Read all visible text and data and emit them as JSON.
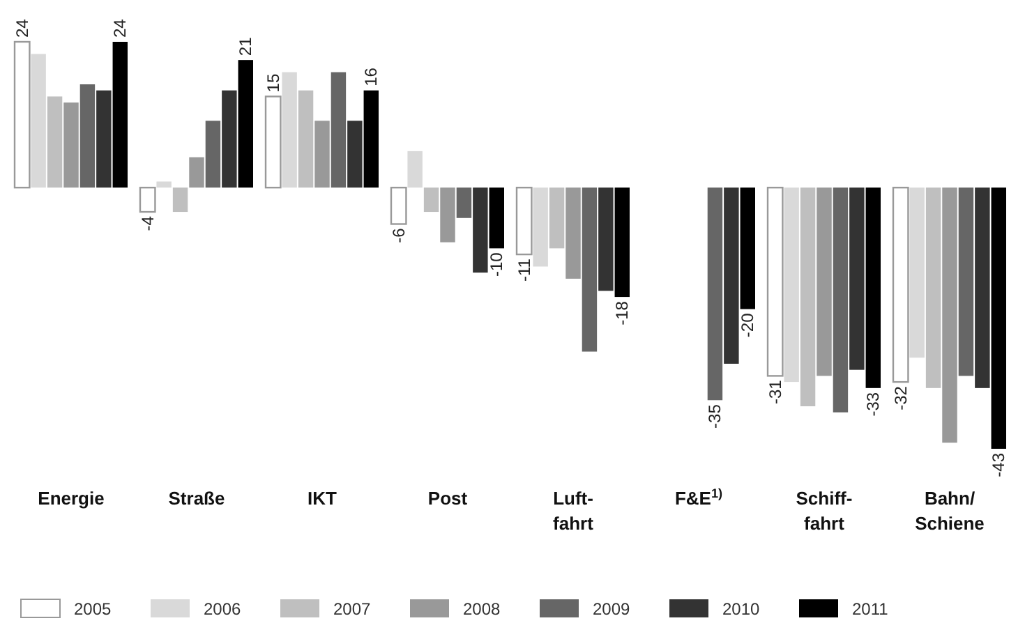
{
  "chart_data": {
    "type": "bar",
    "categories": [
      "Energie",
      "Straße",
      "IKT",
      "Post",
      "Luft-\nfahrt",
      "F&E$^{1)}$",
      "Schiff-\nfahrt",
      "Bahn/\nSchiene"
    ],
    "series": [
      {
        "name": "2005",
        "color": "#ffffff",
        "values": [
          24,
          -4,
          15,
          -6,
          -11,
          null,
          -31,
          -32
        ],
        "value_labels": [
          "24",
          "-4",
          "15",
          "-6",
          "-11",
          null,
          "-31",
          "-32"
        ]
      },
      {
        "name": "2006",
        "color": "#d9d9d9",
        "values": [
          22,
          1,
          19,
          6,
          -13,
          null,
          -32,
          -28
        ],
        "value_labels": [
          null,
          null,
          null,
          null,
          null,
          null,
          null,
          null
        ]
      },
      {
        "name": "2007",
        "color": "#bfbfbf",
        "values": [
          15,
          -4,
          16,
          -4,
          -10,
          null,
          -36,
          -33
        ],
        "value_labels": [
          null,
          null,
          null,
          null,
          null,
          null,
          null,
          null
        ]
      },
      {
        "name": "2008",
        "color": "#999999",
        "values": [
          14,
          5,
          11,
          -9,
          -15,
          null,
          -31,
          -42
        ],
        "value_labels": [
          null,
          null,
          null,
          null,
          null,
          null,
          null,
          null
        ]
      },
      {
        "name": "2009",
        "color": "#666666",
        "values": [
          17,
          11,
          19,
          -5,
          -27,
          -35,
          -37,
          -31
        ],
        "value_labels": [
          null,
          null,
          null,
          null,
          null,
          "-35",
          null,
          null
        ]
      },
      {
        "name": "2010",
        "color": "#333333",
        "values": [
          16,
          16,
          11,
          -14,
          -17,
          -29,
          -30,
          -33
        ],
        "value_labels": [
          null,
          null,
          null,
          null,
          null,
          null,
          null,
          null
        ]
      },
      {
        "name": "2011",
        "color": "#000000",
        "values": [
          24,
          21,
          16,
          -10,
          -18,
          -20,
          -33,
          -43
        ],
        "value_labels": [
          "24",
          "21",
          "16",
          "-10",
          "-18",
          "-20",
          "-33",
          "-43"
        ]
      }
    ],
    "legend": "bottom"
  }
}
